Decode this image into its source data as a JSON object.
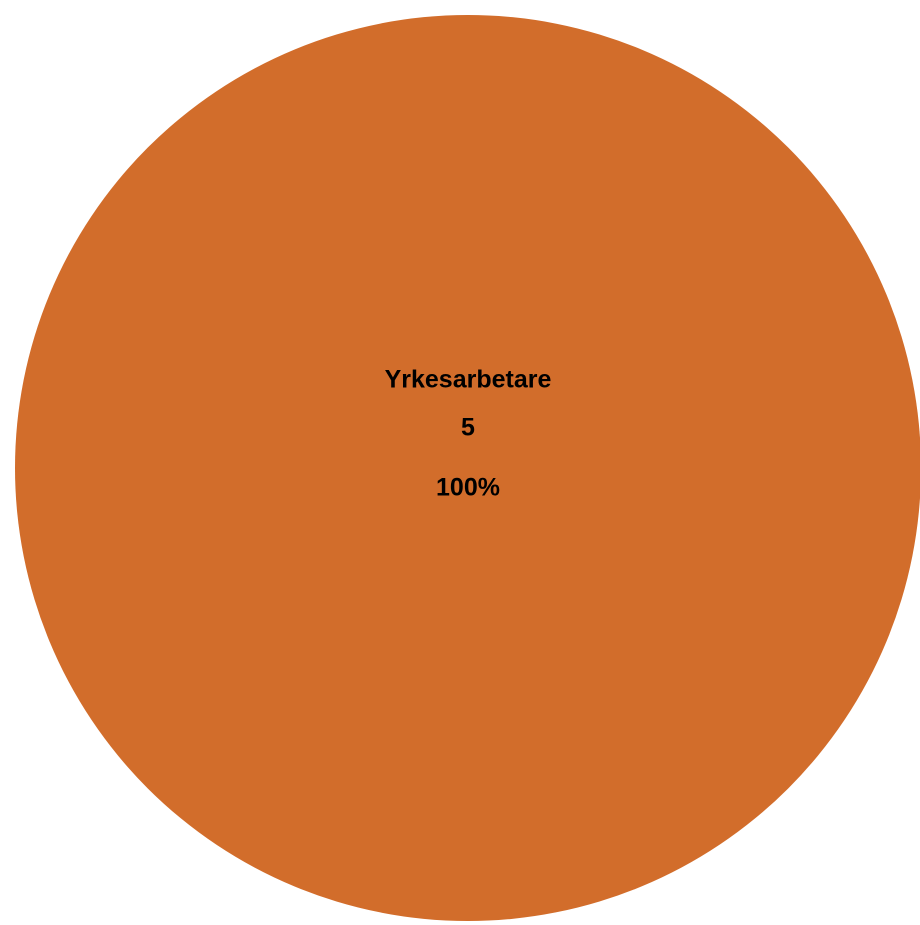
{
  "chart_data": {
    "type": "pie",
    "categories": [
      "Yrkesarbetare"
    ],
    "values": [
      5
    ],
    "percent_labels": [
      "100%"
    ],
    "colors": [
      "#d26d2b"
    ]
  }
}
